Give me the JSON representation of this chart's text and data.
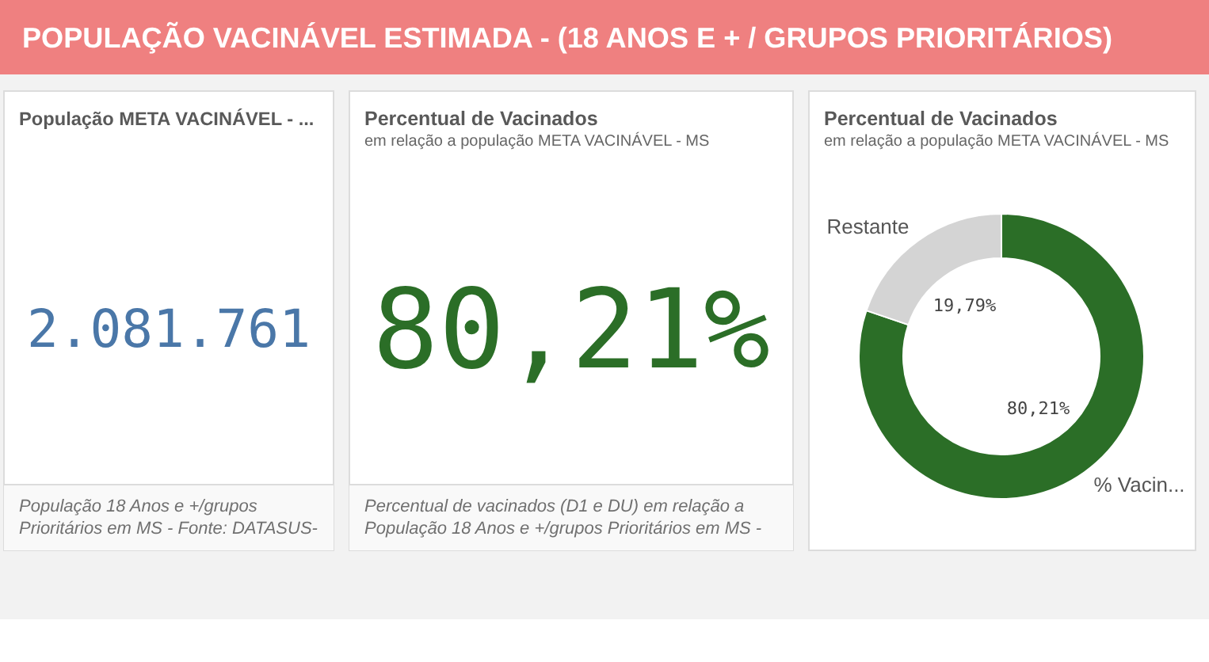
{
  "chart_data": [
    {
      "type": "other",
      "title": "POPULAÇÃO VACINÁVEL ESTIMADA - (18 ANOS E + / GRUPOS PRIORITÁRIOS)"
    },
    {
      "type": "other",
      "title": "População META VACINÁVEL - ...",
      "values": [
        2081761
      ],
      "value_labels": [
        "2.081.761"
      ],
      "annotations": [
        "População 18 Anos e +/grupos Prioritários em MS - Fonte: DATASUS-"
      ]
    },
    {
      "type": "other",
      "title": "Percentual de Vacinados",
      "subtitle": "em relação a população META VACINÁVEL - MS",
      "values": [
        80.21
      ],
      "value_labels": [
        "80,21%"
      ],
      "annotations": [
        "Percentual de vacinados (D1 e DU) em relação a População 18 Anos e +/grupos Prioritários em MS -"
      ]
    },
    {
      "type": "donut",
      "title": "Percentual de Vacinados",
      "subtitle": "em relação a população META VACINÁVEL - MS",
      "categories": [
        "% Vacin...",
        "Restante"
      ],
      "values": [
        80.21,
        19.79
      ],
      "colors": [
        "#2b6e27",
        "#d4d4d4"
      ],
      "value_labels": [
        "80,21%",
        "19,79%"
      ]
    }
  ]
}
